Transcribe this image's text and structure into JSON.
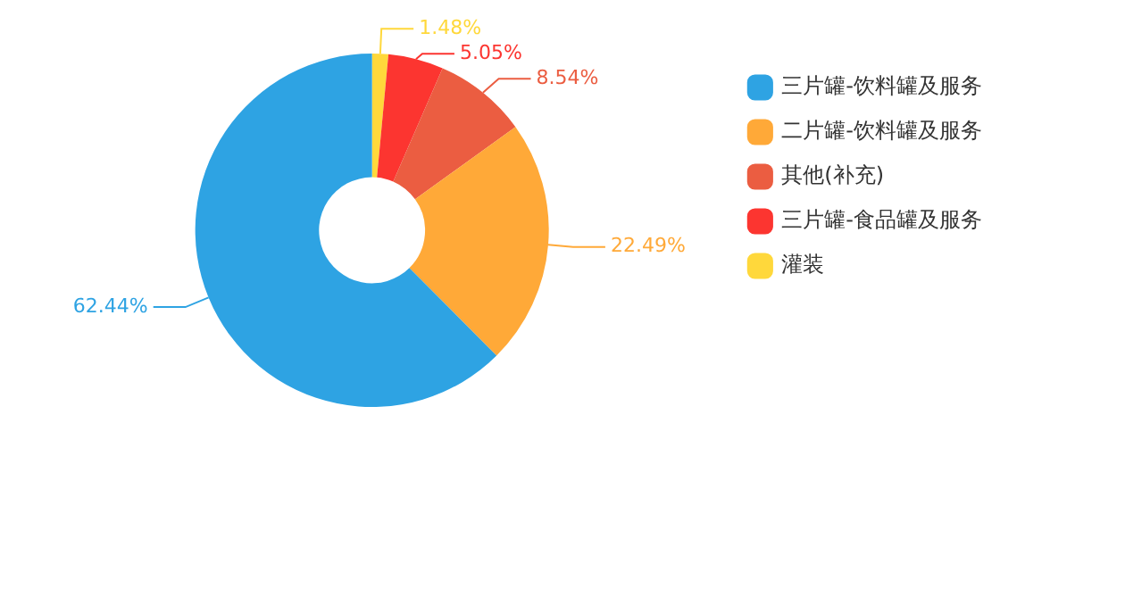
{
  "chart_data": {
    "type": "donut",
    "categories": [
      "三片罐-饮料罐及服务",
      "二片罐-饮料罐及服务",
      "其他(补充)",
      "三片罐-食品罐及服务",
      "灌装"
    ],
    "values": [
      62.44,
      22.49,
      8.54,
      5.05,
      1.48
    ],
    "colors": [
      "#2ea3e3",
      "#ffa938",
      "#eb5d41",
      "#fc3530",
      "#ffd83b"
    ],
    "value_labels": [
      "62.44%",
      "22.49%",
      "8.54%",
      "5.05%",
      "1.48%"
    ],
    "legend": "top right"
  }
}
